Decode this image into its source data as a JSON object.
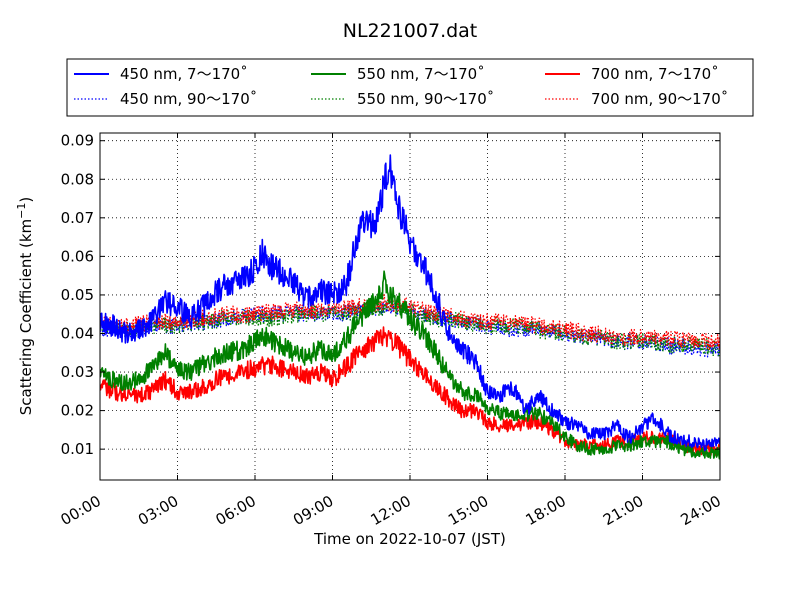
{
  "chart_data": {
    "type": "line",
    "title": "NL221007.dat",
    "xlabel": "Time on 2022-10-07 (JST)",
    "ylabel": "Scattering Coefficient (km",
    "ylabel_sup": "−1",
    "ylabel_close": ")",
    "xlim": [
      0,
      24
    ],
    "ylim": [
      0.002,
      0.092
    ],
    "grid": true,
    "legend_placement": "top, above plot, 3 columns",
    "x_ticks": [
      {
        "value": 0,
        "label": "00:00"
      },
      {
        "value": 3,
        "label": "03:00"
      },
      {
        "value": 6,
        "label": "06:00"
      },
      {
        "value": 9,
        "label": "09:00"
      },
      {
        "value": 12,
        "label": "12:00"
      },
      {
        "value": 15,
        "label": "15:00"
      },
      {
        "value": 18,
        "label": "18:00"
      },
      {
        "value": 21,
        "label": "21:00"
      },
      {
        "value": 24,
        "label": "24:00"
      }
    ],
    "y_ticks": [
      {
        "value": 0.01,
        "label": "0.01"
      },
      {
        "value": 0.02,
        "label": "0.02"
      },
      {
        "value": 0.03,
        "label": "0.03"
      },
      {
        "value": 0.04,
        "label": "0.04"
      },
      {
        "value": 0.05,
        "label": "0.05"
      },
      {
        "value": 0.06,
        "label": "0.06"
      },
      {
        "value": 0.07,
        "label": "0.07"
      },
      {
        "value": 0.08,
        "label": "0.08"
      },
      {
        "value": 0.09,
        "label": "0.09"
      }
    ],
    "series": [
      {
        "name": "450 nm, 7～170˚",
        "color": "#0000ff",
        "style": "solid",
        "x": [
          0,
          0.5,
          1,
          1.5,
          2,
          2.5,
          3,
          3.5,
          4,
          4.5,
          5,
          5.5,
          6,
          6.3,
          6.5,
          7,
          7.5,
          8,
          8.5,
          9,
          9.5,
          10,
          10.3,
          10.6,
          11,
          11.2,
          11.5,
          11.8,
          12,
          12.5,
          13,
          13.5,
          14,
          14.5,
          15,
          15.5,
          16,
          16.5,
          17,
          17.5,
          18,
          18.5,
          19,
          19.5,
          20,
          20.5,
          21,
          21.5,
          22,
          22.5,
          23,
          23.5,
          24
        ],
        "y": [
          0.043,
          0.042,
          0.04,
          0.041,
          0.043,
          0.048,
          0.047,
          0.044,
          0.047,
          0.051,
          0.053,
          0.054,
          0.057,
          0.061,
          0.058,
          0.056,
          0.053,
          0.049,
          0.051,
          0.05,
          0.052,
          0.066,
          0.07,
          0.067,
          0.079,
          0.084,
          0.073,
          0.068,
          0.063,
          0.058,
          0.05,
          0.04,
          0.036,
          0.033,
          0.025,
          0.024,
          0.026,
          0.02,
          0.024,
          0.02,
          0.017,
          0.016,
          0.014,
          0.014,
          0.016,
          0.013,
          0.016,
          0.018,
          0.014,
          0.012,
          0.012,
          0.011,
          0.012
        ]
      },
      {
        "name": "450 nm, 90～170˚",
        "color": "#0000ff",
        "style": "dotted",
        "x": [
          0,
          1,
          2,
          3,
          4,
          5,
          6,
          7,
          8,
          9,
          10,
          11,
          12,
          13,
          14,
          15,
          16,
          17,
          18,
          19,
          20,
          21,
          22,
          23,
          24
        ],
        "y": [
          0.041,
          0.041,
          0.042,
          0.042,
          0.043,
          0.044,
          0.045,
          0.045,
          0.045,
          0.045,
          0.046,
          0.047,
          0.046,
          0.044,
          0.043,
          0.042,
          0.041,
          0.041,
          0.04,
          0.039,
          0.038,
          0.038,
          0.037,
          0.036,
          0.036
        ]
      },
      {
        "name": "550 nm, 7～170˚",
        "color": "#008000",
        "style": "solid",
        "x": [
          0,
          0.5,
          1,
          1.5,
          2,
          2.5,
          3,
          3.5,
          4,
          4.5,
          5,
          5.5,
          6,
          6.5,
          7,
          7.5,
          8,
          8.5,
          9,
          9.5,
          10,
          10.5,
          11,
          11.5,
          12,
          12.5,
          13,
          13.5,
          14,
          14.5,
          15,
          15.5,
          16,
          16.5,
          17,
          17.5,
          18,
          18.5,
          19,
          19.5,
          20,
          20.5,
          21,
          21.5,
          22,
          22.5,
          23,
          23.5,
          24
        ],
        "y": [
          0.03,
          0.028,
          0.027,
          0.028,
          0.031,
          0.035,
          0.031,
          0.03,
          0.032,
          0.034,
          0.035,
          0.036,
          0.038,
          0.039,
          0.037,
          0.035,
          0.034,
          0.036,
          0.034,
          0.038,
          0.044,
          0.047,
          0.053,
          0.048,
          0.044,
          0.04,
          0.035,
          0.029,
          0.025,
          0.024,
          0.021,
          0.019,
          0.019,
          0.019,
          0.019,
          0.017,
          0.013,
          0.011,
          0.01,
          0.01,
          0.011,
          0.011,
          0.012,
          0.012,
          0.012,
          0.01,
          0.009,
          0.009,
          0.009
        ]
      },
      {
        "name": "550 nm, 90～170˚",
        "color": "#008000",
        "style": "dotted",
        "x": [
          0,
          1,
          2,
          3,
          4,
          5,
          6,
          7,
          8,
          9,
          10,
          11,
          12,
          13,
          14,
          15,
          16,
          17,
          18,
          19,
          20,
          21,
          22,
          23,
          24
        ],
        "y": [
          0.042,
          0.041,
          0.042,
          0.042,
          0.043,
          0.044,
          0.044,
          0.044,
          0.045,
          0.045,
          0.046,
          0.047,
          0.046,
          0.044,
          0.043,
          0.042,
          0.042,
          0.041,
          0.04,
          0.039,
          0.038,
          0.038,
          0.037,
          0.037,
          0.036
        ]
      },
      {
        "name": "700 nm, 7～170˚",
        "color": "#ff0000",
        "style": "solid",
        "x": [
          0,
          0.5,
          1,
          1.5,
          2,
          2.5,
          3,
          3.5,
          4,
          4.5,
          5,
          5.5,
          6,
          6.5,
          7,
          7.5,
          8,
          8.5,
          9,
          9.5,
          10,
          10.5,
          11,
          11.5,
          12,
          12.5,
          13,
          13.5,
          14,
          14.5,
          15,
          15.5,
          16,
          16.5,
          17,
          17.5,
          18,
          18.5,
          19,
          19.5,
          20,
          20.5,
          21,
          21.5,
          22,
          22.5,
          23,
          23.5,
          24
        ],
        "y": [
          0.027,
          0.025,
          0.024,
          0.024,
          0.025,
          0.028,
          0.025,
          0.025,
          0.026,
          0.028,
          0.029,
          0.03,
          0.031,
          0.032,
          0.031,
          0.03,
          0.029,
          0.03,
          0.028,
          0.031,
          0.035,
          0.037,
          0.04,
          0.037,
          0.033,
          0.03,
          0.026,
          0.023,
          0.02,
          0.02,
          0.017,
          0.016,
          0.016,
          0.017,
          0.017,
          0.015,
          0.012,
          0.011,
          0.011,
          0.011,
          0.012,
          0.012,
          0.013,
          0.013,
          0.013,
          0.011,
          0.01,
          0.01,
          0.01
        ]
      },
      {
        "name": "700 nm, 90～170˚",
        "color": "#ff0000",
        "style": "dotted",
        "x": [
          0,
          1,
          2,
          3,
          4,
          5,
          6,
          7,
          8,
          9,
          10,
          11,
          12,
          13,
          14,
          15,
          16,
          17,
          18,
          19,
          20,
          21,
          22,
          23,
          24
        ],
        "y": [
          0.043,
          0.042,
          0.043,
          0.043,
          0.044,
          0.045,
          0.045,
          0.046,
          0.046,
          0.046,
          0.047,
          0.048,
          0.047,
          0.045,
          0.044,
          0.043,
          0.043,
          0.042,
          0.041,
          0.04,
          0.039,
          0.039,
          0.039,
          0.038,
          0.038
        ]
      }
    ]
  }
}
